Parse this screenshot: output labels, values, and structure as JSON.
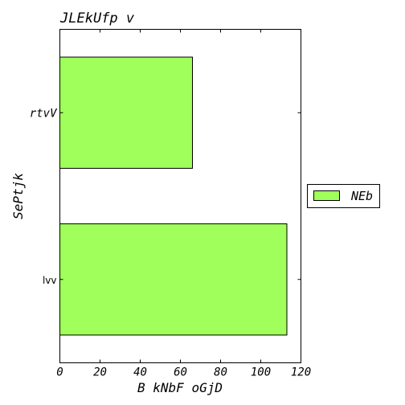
{
  "chart_data": {
    "type": "bar",
    "orientation": "horizontal",
    "title": "JLEkUfp  v",
    "xlabel": "B kNbF oGjD",
    "ylabel": "SePtjk",
    "categories": [
      "lvv",
      "rtvV"
    ],
    "series": [
      {
        "name": "NEb",
        "values": [
          113,
          66
        ],
        "color": "#a0ff5a"
      }
    ],
    "xlim": [
      0,
      120
    ],
    "xticks": [
      "0",
      "20",
      "40",
      "60",
      "80",
      "100",
      "120"
    ],
    "grid": false,
    "legend_position": "right-outside"
  }
}
